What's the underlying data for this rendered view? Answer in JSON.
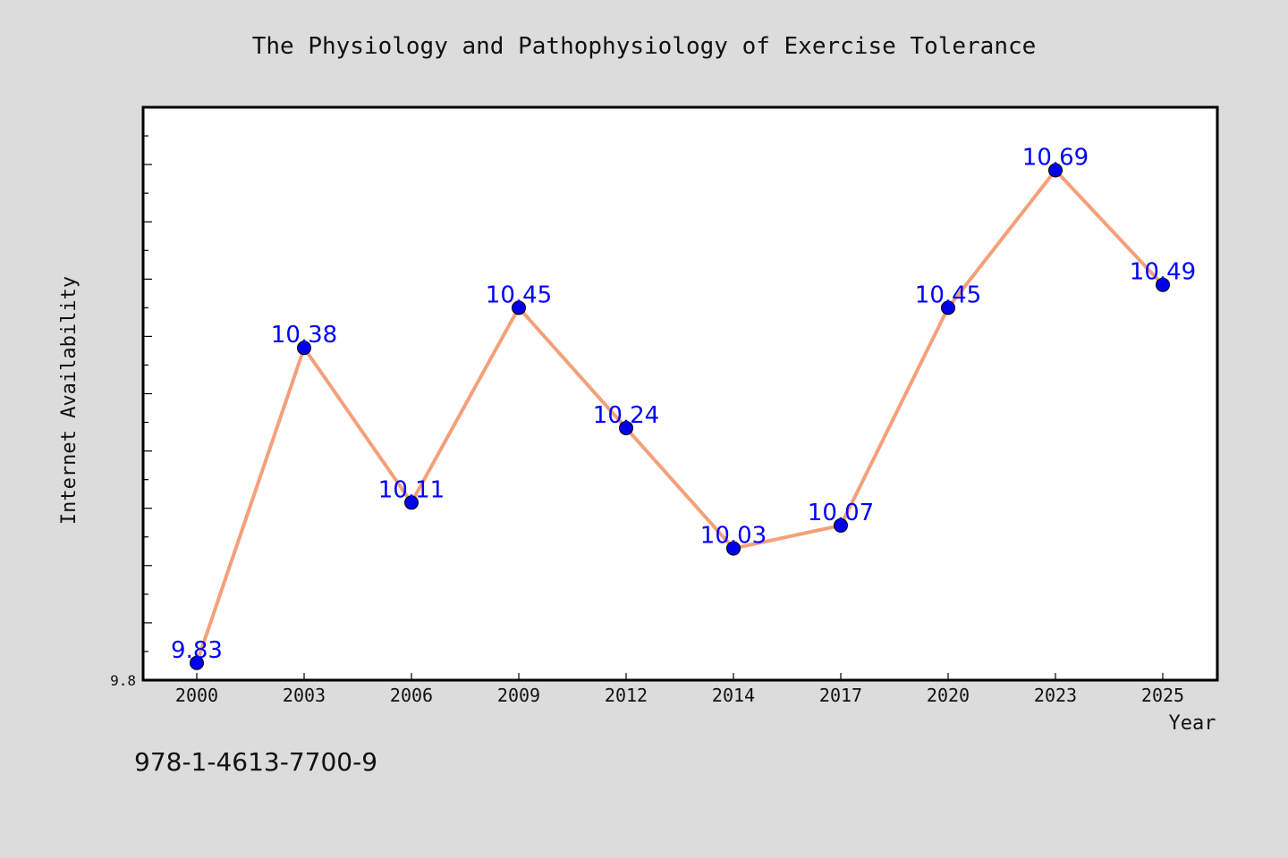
{
  "chart_data": {
    "type": "line",
    "title": "The Physiology and Pathophysiology of Exercise Tolerance",
    "xlabel": "Year",
    "ylabel": "Internet Availability",
    "categories": [
      "2000",
      "2003",
      "2006",
      "2009",
      "2012",
      "2014",
      "2017",
      "2020",
      "2023",
      "2025"
    ],
    "values": [
      9.83,
      10.38,
      10.11,
      10.45,
      10.24,
      10.03,
      10.07,
      10.45,
      10.69,
      10.49
    ],
    "data_labels": [
      "9.83",
      "10.38",
      "10.11",
      "10.45",
      "10.24",
      "10.03",
      "10.07",
      "10.45",
      "10.69",
      "10.49"
    ],
    "y_tick_labels": [
      "9.8"
    ],
    "ylim": [
      9.8,
      10.8
    ],
    "grid": false,
    "legend": "none",
    "colors": {
      "line": "#f4a07a",
      "marker": "#0000ee",
      "label": "#0000ff",
      "background": "#dcdcdc",
      "plot_background": "#ffffff"
    }
  },
  "footer": {
    "isbn": "978-1-4613-7700-9"
  }
}
